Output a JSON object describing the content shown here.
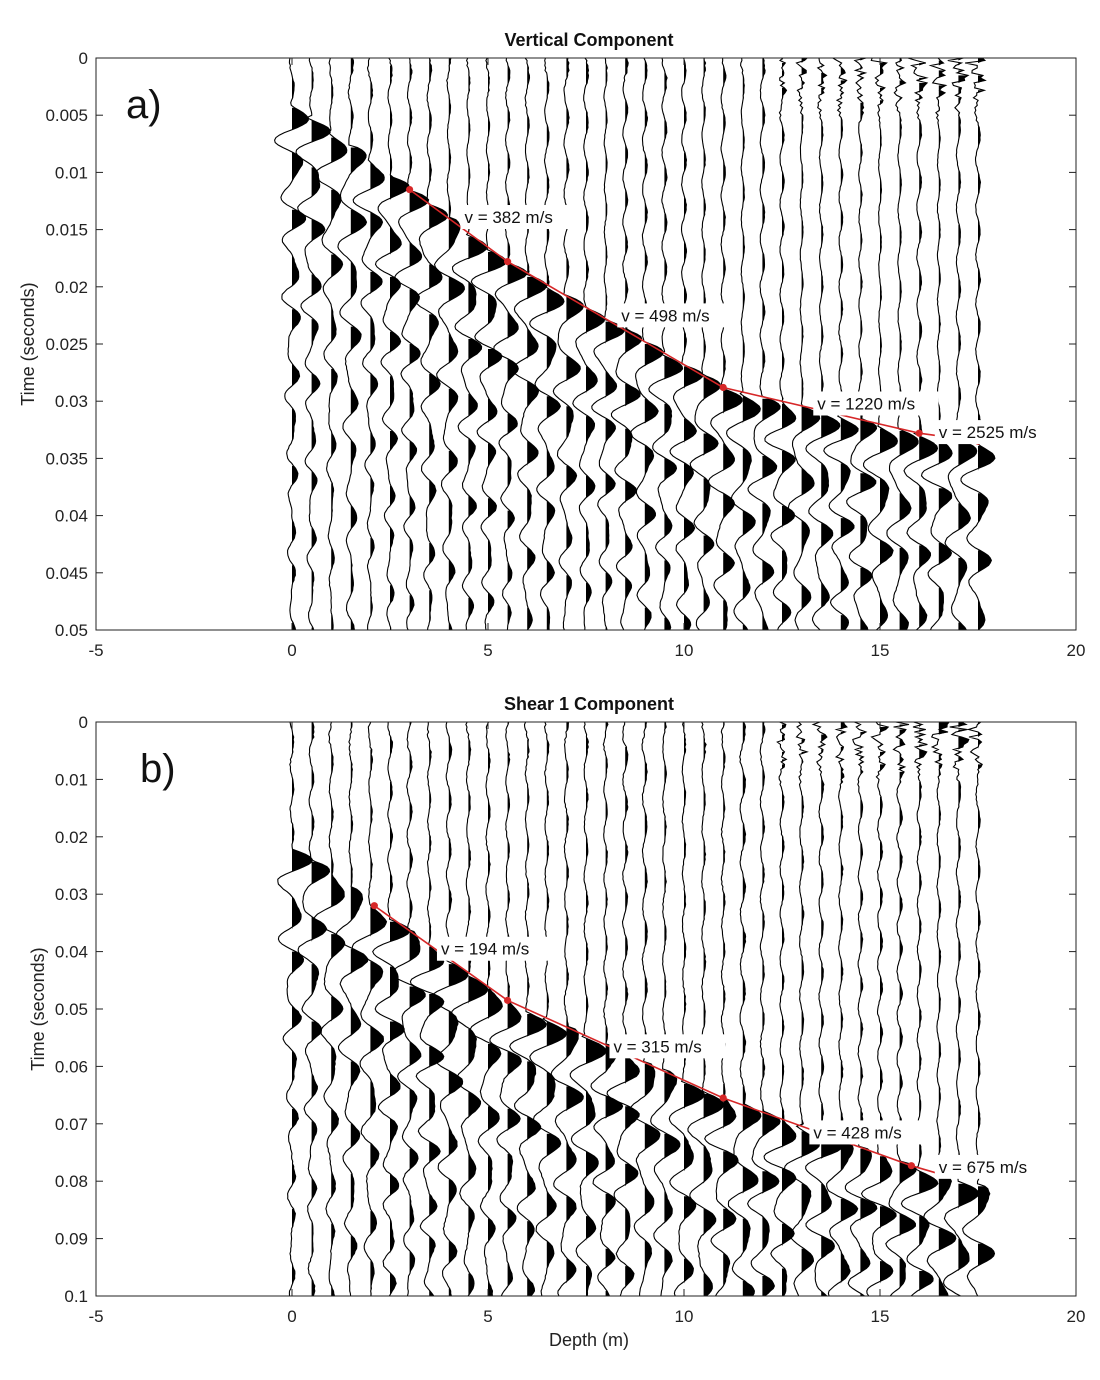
{
  "chart_data": [
    {
      "type": "line",
      "subtype": "seismic-wiggle-traces",
      "panel_label": "a)",
      "title": "Vertical Component",
      "xlabel": "",
      "ylabel": "Time (seconds)",
      "xlim": [
        -5,
        20
      ],
      "ylim": [
        0,
        0.05
      ],
      "y_reversed": true,
      "x_ticks": [
        "-5",
        "0",
        "5",
        "10",
        "15",
        "20"
      ],
      "y_ticks": [
        "0",
        "0.005",
        "0.01",
        "0.015",
        "0.02",
        "0.025",
        "0.03",
        "0.035",
        "0.04",
        "0.045",
        "0.05"
      ],
      "trace_depths": {
        "start": 0,
        "step": 0.5,
        "count": 36
      },
      "first_arrival_picks": {
        "name": "",
        "x": [
          3.0,
          5.5,
          11.0,
          16.0,
          17.5
        ],
        "y": [
          0.0115,
          0.0178,
          0.0288,
          0.0328,
          0.0335
        ]
      },
      "annotations": [
        {
          "text": "v = 382 m/s",
          "x": 4.4,
          "y": 0.0139
        },
        {
          "text": "v = 498 m/s",
          "x": 8.4,
          "y": 0.0225
        },
        {
          "text": "v = 1220 m/s",
          "x": 13.4,
          "y": 0.0302
        },
        {
          "text": "v = 2525 m/s",
          "x": 16.5,
          "y": 0.0327
        }
      ],
      "colors": {
        "picks": "#d62728",
        "traces": "#000000"
      }
    },
    {
      "type": "line",
      "subtype": "seismic-wiggle-traces",
      "panel_label": "b)",
      "title": "Shear 1 Component",
      "xlabel": "Depth (m)",
      "ylabel": "Time (seconds)",
      "xlim": [
        -5,
        20
      ],
      "ylim": [
        0,
        0.1
      ],
      "y_reversed": true,
      "x_ticks": [
        "-5",
        "0",
        "5",
        "10",
        "15",
        "20"
      ],
      "y_ticks": [
        "0",
        "0.01",
        "0.02",
        "0.03",
        "0.04",
        "0.05",
        "0.06",
        "0.07",
        "0.08",
        "0.09",
        "0.1"
      ],
      "trace_depths": {
        "start": 0,
        "step": 0.5,
        "count": 36
      },
      "first_arrival_picks": {
        "name": "",
        "x": [
          2.1,
          5.5,
          11.0,
          15.8,
          16.5
        ],
        "y": [
          0.032,
          0.0485,
          0.0655,
          0.0773,
          0.0787
        ]
      },
      "annotations": [
        {
          "text": "v = 194 m/s",
          "x": 3.8,
          "y": 0.0395
        },
        {
          "text": "v = 315 m/s",
          "x": 8.2,
          "y": 0.0565
        },
        {
          "text": "v = 428 m/s",
          "x": 13.3,
          "y": 0.0715
        },
        {
          "text": "v = 675 m/s",
          "x": 16.5,
          "y": 0.0775
        }
      ],
      "colors": {
        "picks": "#d62728",
        "traces": "#000000"
      }
    }
  ]
}
